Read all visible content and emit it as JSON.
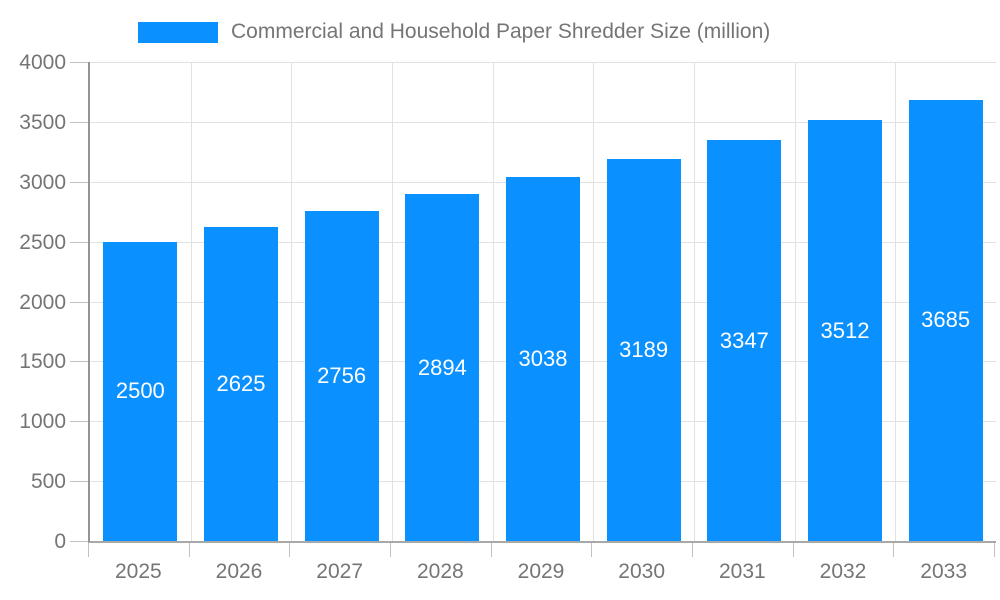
{
  "chart_data": {
    "type": "bar",
    "title": "Commercial and Household Paper Shredder Size (million)",
    "categories": [
      "2025",
      "2026",
      "2027",
      "2028",
      "2029",
      "2030",
      "2031",
      "2032",
      "2033"
    ],
    "values": [
      2500,
      2625,
      2756,
      2894,
      3038,
      3189,
      3347,
      3512,
      3685
    ],
    "xlabel": "",
    "ylabel": "",
    "ylim": [
      0,
      4000
    ],
    "y_ticks": [
      0,
      500,
      1000,
      1500,
      2000,
      2500,
      3000,
      3500,
      4000
    ],
    "grid": true,
    "legend_position": "top",
    "bar_labels_inside": true,
    "colors": {
      "bar": "#0a90ff",
      "bar_label": "#ffffff",
      "axis_text": "#757575",
      "grid_line": "#e2e2e2",
      "axis_line": "#9a9a9a",
      "tick": "#c2c2c2",
      "background": "#ffffff"
    }
  }
}
